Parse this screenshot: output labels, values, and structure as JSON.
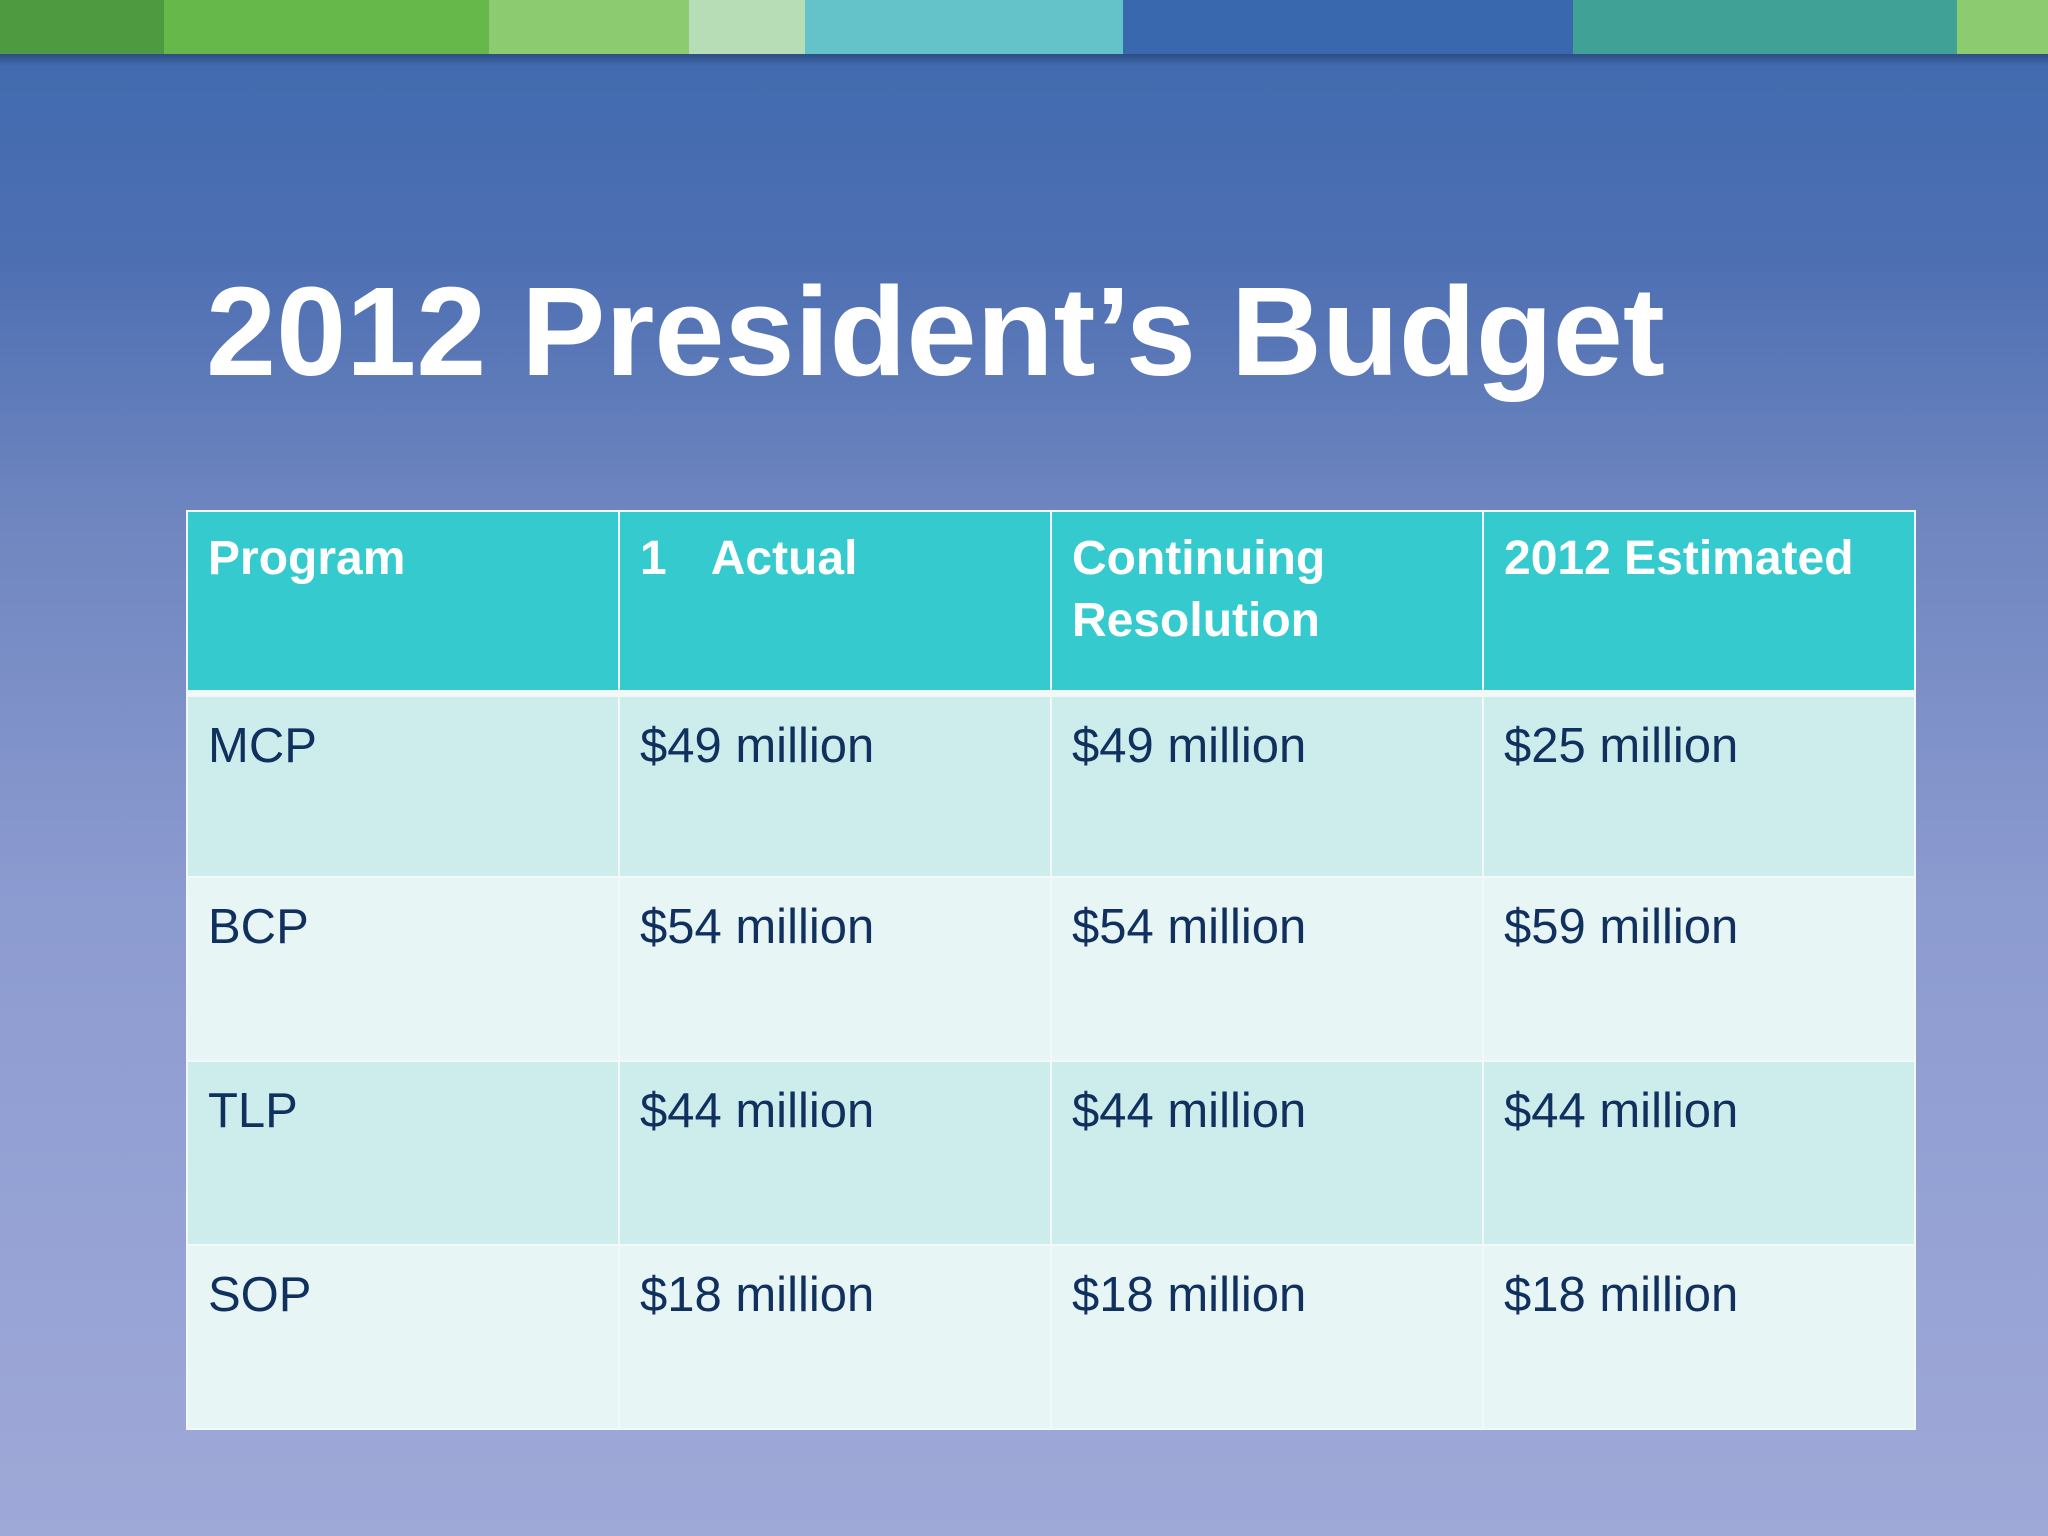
{
  "top_bar": {
    "colors": [
      "#4e9a40",
      "#65b849",
      "#8ccb70",
      "#b6ddb5",
      "#63c3c8",
      "#3a68ae",
      "#40a196",
      "#8ccb70"
    ]
  },
  "slide": {
    "title": "2012 President’s Budget"
  },
  "table": {
    "headers": {
      "program": "Program",
      "actual_num": "1",
      "actual_label": "Actual",
      "continuing": "Continuing Resolution",
      "estimated": "2012 Estimated"
    },
    "rows": [
      {
        "program": "MCP",
        "actual": "$49 million",
        "continuing": "$49 million",
        "estimated": "$25 million"
      },
      {
        "program": "BCP",
        "actual": "$54 million",
        "continuing": "$54 million",
        "estimated": "$59 million"
      },
      {
        "program": "TLP",
        "actual": "$44 million",
        "continuing": "$44 million",
        "estimated": "$44 million"
      },
      {
        "program": "SOP",
        "actual": "$18 million",
        "continuing": "$18 million",
        "estimated": "$18 million"
      }
    ]
  }
}
